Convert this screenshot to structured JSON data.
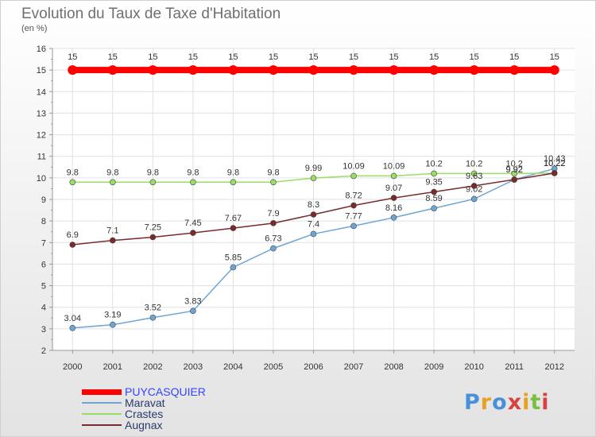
{
  "header": {
    "title": "Evolution du Taux de Taxe d'Habitation",
    "unit": "(en %)"
  },
  "logo": {
    "text": "Proxiti",
    "colors": [
      "#4a90d9",
      "#e8a020",
      "#4a90d9",
      "#d94040",
      "#e8a020",
      "#7abf40",
      "#d94040"
    ]
  },
  "chart_data": {
    "type": "line",
    "x": [
      "2000",
      "2001",
      "2002",
      "2003",
      "2004",
      "2005",
      "2006",
      "2007",
      "2008",
      "2009",
      "2010",
      "2011",
      "2012"
    ],
    "ylim": [
      2,
      16
    ],
    "yticks": [
      "2",
      "3",
      "4",
      "5",
      "6",
      "7",
      "8",
      "9",
      "10",
      "11",
      "12",
      "13",
      "14",
      "15",
      "16"
    ],
    "grid": true,
    "legend_position": "bottom-left",
    "series": [
      {
        "name": "PUYCASQUIER",
        "color": "#ff0000",
        "values": [
          15,
          15,
          15,
          15,
          15,
          15,
          15,
          15,
          15,
          15,
          15,
          15,
          15
        ],
        "labels": [
          "15",
          "15",
          "15",
          "15",
          "15",
          "15",
          "15",
          "15",
          "15",
          "15",
          "15",
          "15",
          "15"
        ]
      },
      {
        "name": "Maravat",
        "color": "#6fa5d5",
        "values": [
          3.04,
          3.19,
          3.52,
          3.83,
          5.85,
          6.73,
          7.4,
          7.77,
          8.16,
          8.59,
          9.02,
          9.92,
          10.43
        ],
        "labels": [
          "3.04",
          "3.19",
          "3.52",
          "3.83",
          "5.85",
          "6.73",
          "7.4",
          "7.77",
          "8.16",
          "8.59",
          "9.02",
          "9.92",
          "10.43"
        ]
      },
      {
        "name": "Crastes",
        "color": "#99dd66",
        "values": [
          9.8,
          9.8,
          9.8,
          9.8,
          9.8,
          9.8,
          9.99,
          10.09,
          10.09,
          10.2,
          10.2,
          10.2,
          10.22
        ],
        "labels": [
          "9.8",
          "9.8",
          "9.8",
          "9.8",
          "9.8",
          "9.8",
          "9.99",
          "10.09",
          "10.09",
          "10.2",
          "10.2",
          "10.2",
          "10.22"
        ]
      },
      {
        "name": "Augnax",
        "color": "#7a2a2a",
        "values": [
          6.9,
          7.1,
          7.25,
          7.45,
          7.67,
          7.9,
          8.3,
          8.72,
          9.07,
          9.35,
          9.63,
          9.92,
          10.22
        ],
        "labels": [
          "6.9",
          "7.1",
          "7.25",
          "7.45",
          "7.67",
          "7.9",
          "8.3",
          "8.72",
          "9.07",
          "9.35",
          "9.63",
          "9.92",
          "10.22"
        ]
      }
    ]
  }
}
